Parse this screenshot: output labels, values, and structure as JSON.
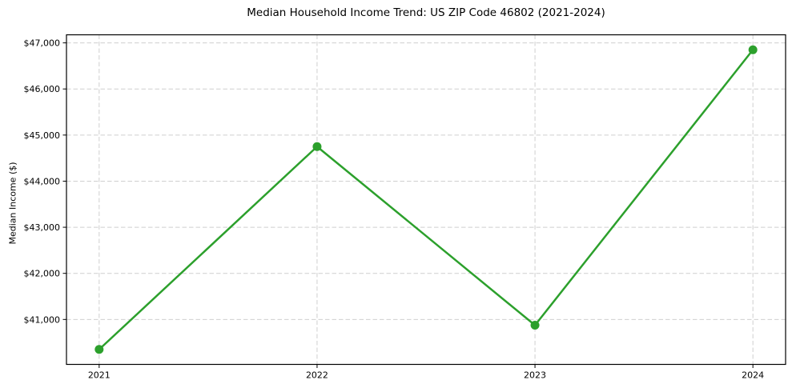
{
  "title": "Median Household Income Trend: US ZIP Code 46802 (2021-2024)",
  "ylabel": "Median Income ($)",
  "chart_data": {
    "type": "line",
    "series_name": "Median Household Income",
    "x": [
      2021,
      2022,
      2023,
      2024
    ],
    "x_labels": [
      "2021",
      "2022",
      "2023",
      "2024"
    ],
    "values": [
      40350,
      44750,
      40875,
      46850
    ],
    "yticks": [
      {
        "value": 41000,
        "label": "$41,000"
      },
      {
        "value": 42000,
        "label": "$42,000"
      },
      {
        "value": 43000,
        "label": "$43,000"
      },
      {
        "value": 44000,
        "label": "$44,000"
      },
      {
        "value": 45000,
        "label": "$45,000"
      },
      {
        "value": 46000,
        "label": "$46,000"
      },
      {
        "value": 47000,
        "label": "$47,000"
      }
    ],
    "ylim": [
      40025,
      47175
    ],
    "xlim": [
      2020.85,
      2024.15
    ],
    "grid": true,
    "grid_style": "dashed",
    "legend": false,
    "marker": "circle",
    "colors": {
      "line": "#2ca02c",
      "marker": "#2ca02c",
      "grid": "#cfcfcf",
      "spine": "#000000",
      "text": "#000000",
      "background": "#ffffff"
    }
  }
}
